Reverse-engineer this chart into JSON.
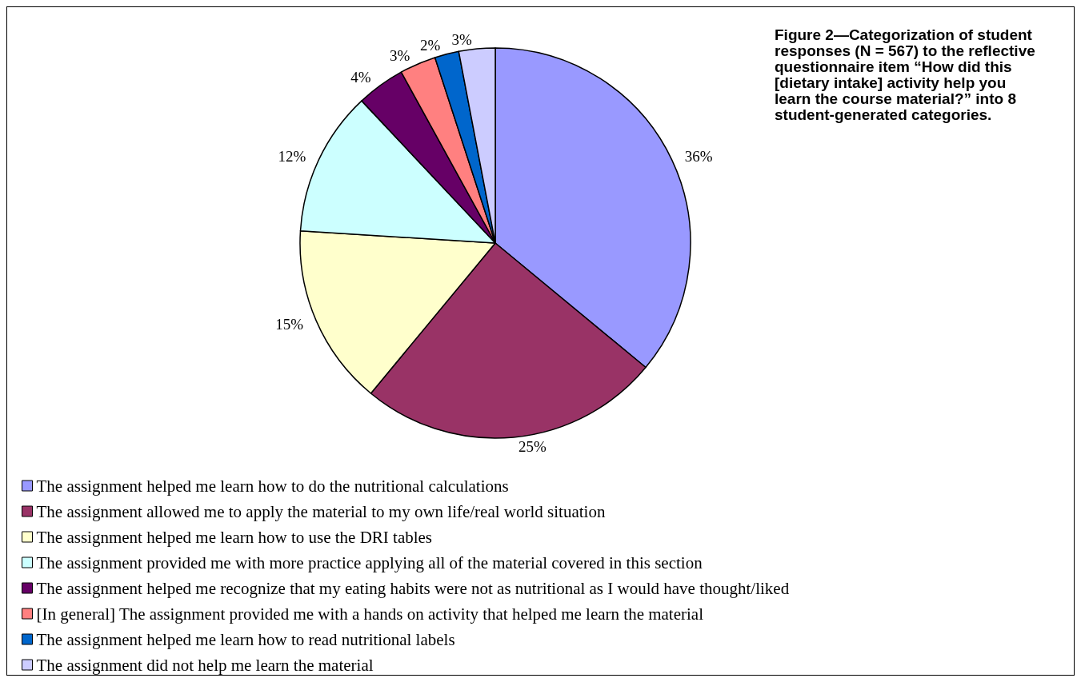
{
  "chart_data": {
    "type": "pie",
    "title": "Figure 2—Categorization of student responses (N = 567) to the reflective questionnaire item “How did this [dietary intake] activity help you learn the course material?” into 8 student-generated categories.",
    "categories": [
      "The assignment helped me learn how to do the nutritional calculations",
      "The assignment allowed me to apply the material to my own life/real world situation",
      "The assignment helped me learn how to use the DRI tables",
      "The assignment provided me with more practice applying all of the material covered in this section",
      "The assignment helped me recognize that my eating habits were not as nutritional as I would have thought/liked",
      "[In general] The assignment provided me with a hands on activity that helped me learn the material",
      "The assignment helped me learn how to read nutritional labels",
      "The assignment did not help me learn the material"
    ],
    "values": [
      36,
      25,
      15,
      12,
      4,
      3,
      2,
      3
    ],
    "value_labels": [
      "36%",
      "25%",
      "15%",
      "12%",
      "4%",
      "3%",
      "2%",
      "3%"
    ],
    "colors": [
      "#9999ff",
      "#993366",
      "#ffffcc",
      "#ccffff",
      "#660066",
      "#ff8080",
      "#0066cc",
      "#ccccff"
    ],
    "legend": "bottom"
  }
}
